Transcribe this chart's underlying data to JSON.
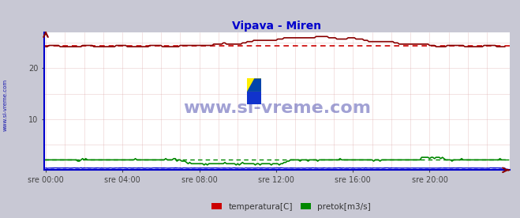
{
  "title": "Vipava - Miren",
  "title_color": "#0000cc",
  "bg_color": "#c8c8d4",
  "plot_bg_color": "#ffffff",
  "sidebar_text": "www.si-vreme.com",
  "watermark_text": "www.si-vreme.com",
  "xlabel_ticks": [
    "sre 00:00",
    "sre 04:00",
    "sre 08:00",
    "sre 12:00",
    "sre 16:00",
    "sre 20:00"
  ],
  "xlabel_tick_positions": [
    0,
    48,
    96,
    144,
    192,
    240
  ],
  "ylim_max": 27,
  "yticks": [
    10,
    20
  ],
  "temp_avg": 24.5,
  "pretok_avg": 2.0,
  "visina_avg": 0.4,
  "n_points": 288,
  "legend_labels": [
    "temperatura[C]",
    "pretok[m3/s]"
  ],
  "legend_colors": [
    "#cc0000",
    "#008800"
  ],
  "grid_color": "#ddaaaa",
  "temp_color": "#880000",
  "pretok_color": "#008800",
  "visina_color": "#0000cc",
  "temp_dot_color": "#cc0000",
  "pretok_dot_color": "#008800",
  "visina_dot_color": "#8888ff"
}
